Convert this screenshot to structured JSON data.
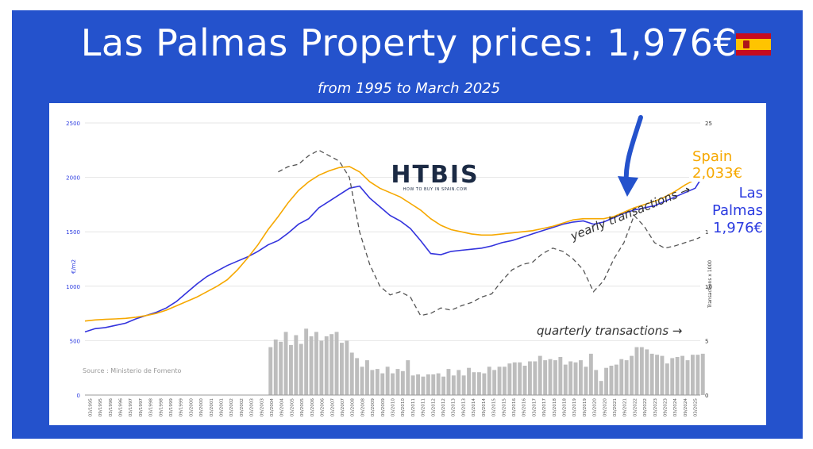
{
  "header": {
    "title": "Las Palmas Property prices: 1,976€",
    "subtitle": "from 1995 to March 2025",
    "flag_icon": "spain-flag-icon"
  },
  "labels": {
    "spain_price": "Spain 2,033€",
    "lp_name": "Las Palmas",
    "lp_price": "1,976€",
    "yearly": "yearly transactions →",
    "quarterly": "quarterly transactions →",
    "source": "Source : Ministerio de Fomento",
    "logo_main": "HTBIS",
    "logo_sub": "HOW TO BUY IN SPAIN.COM"
  },
  "colors": {
    "background": "#2452cc",
    "las_palmas": "#3333dd",
    "spain": "#f6a800",
    "bars": "#bdbdbd",
    "yearly": "#555555",
    "arrow": "#2452cc"
  },
  "chart_data": {
    "type": "line",
    "title": "",
    "xlabel": "",
    "ylabel": "€/m2",
    "y2label": "Transactions x 1000",
    "ylim": [
      0,
      2500
    ],
    "y2lim": [
      0,
      25
    ],
    "yticks": [
      0,
      500,
      1000,
      1500,
      2000,
      2500
    ],
    "y2ticks": [
      0,
      5,
      10,
      15,
      20,
      25
    ],
    "grid": true,
    "x_start": 1995.0,
    "x_end": 2025.25,
    "xticks": [
      "03/1995",
      "09/1995",
      "03/1996",
      "09/1996",
      "03/1997",
      "09/1997",
      "03/1998",
      "09/1998",
      "03/1999",
      "09/1999",
      "03/2000",
      "09/2000",
      "03/2001",
      "09/2001",
      "03/2002",
      "09/2002",
      "03/2003",
      "09/2003",
      "03/2004",
      "09/2004",
      "03/2005",
      "09/2005",
      "03/2006",
      "09/2006",
      "03/2007",
      "09/2007",
      "03/2008",
      "09/2008",
      "03/2009",
      "09/2009",
      "03/2010",
      "09/2010",
      "03/2011",
      "09/2011",
      "03/2012",
      "09/2012",
      "03/2013",
      "09/2013",
      "03/2014",
      "09/2014",
      "03/2015",
      "09/2015",
      "03/2016",
      "09/2016",
      "03/2017",
      "09/2017",
      "03/2018",
      "09/2018",
      "03/2019",
      "09/2019",
      "03/2020",
      "09/2020",
      "03/2021",
      "09/2021",
      "03/2022",
      "09/2022",
      "03/2023",
      "09/2023",
      "03/2024",
      "09/2024",
      "03/2025"
    ],
    "series": [
      {
        "name": "Las Palmas",
        "axis": "left",
        "color": "#3333dd",
        "x": [
          1995.0,
          1995.5,
          1996.0,
          1996.5,
          1997.0,
          1997.5,
          1998.0,
          1998.5,
          1999.0,
          1999.5,
          2000.0,
          2000.5,
          2001.0,
          2001.5,
          2002.0,
          2002.5,
          2003.0,
          2003.5,
          2004.0,
          2004.5,
          2005.0,
          2005.5,
          2006.0,
          2006.5,
          2007.0,
          2007.5,
          2008.0,
          2008.5,
          2009.0,
          2009.5,
          2010.0,
          2010.5,
          2011.0,
          2011.5,
          2012.0,
          2012.5,
          2013.0,
          2013.5,
          2014.0,
          2014.5,
          2015.0,
          2015.5,
          2016.0,
          2016.5,
          2017.0,
          2017.5,
          2018.0,
          2018.5,
          2019.0,
          2019.5,
          2020.0,
          2020.5,
          2021.0,
          2021.5,
          2022.0,
          2022.5,
          2023.0,
          2023.5,
          2024.0,
          2024.5,
          2025.0,
          2025.25
        ],
        "y": [
          580,
          610,
          620,
          640,
          660,
          700,
          730,
          760,
          800,
          860,
          940,
          1020,
          1090,
          1140,
          1190,
          1230,
          1270,
          1320,
          1380,
          1420,
          1490,
          1570,
          1620,
          1720,
          1780,
          1840,
          1900,
          1920,
          1810,
          1730,
          1650,
          1600,
          1530,
          1420,
          1300,
          1290,
          1320,
          1330,
          1340,
          1350,
          1370,
          1400,
          1420,
          1450,
          1480,
          1510,
          1540,
          1570,
          1590,
          1600,
          1570,
          1590,
          1630,
          1670,
          1700,
          1720,
          1740,
          1780,
          1820,
          1860,
          1900,
          1976
        ]
      },
      {
        "name": "Spain",
        "axis": "left",
        "color": "#f6a800",
        "x": [
          1995.0,
          1995.5,
          1996.0,
          1996.5,
          1997.0,
          1997.5,
          1998.0,
          1998.5,
          1999.0,
          1999.5,
          2000.0,
          2000.5,
          2001.0,
          2001.5,
          2002.0,
          2002.5,
          2003.0,
          2003.5,
          2004.0,
          2004.5,
          2005.0,
          2005.5,
          2006.0,
          2006.5,
          2007.0,
          2007.5,
          2008.0,
          2008.5,
          2009.0,
          2009.5,
          2010.0,
          2010.5,
          2011.0,
          2011.5,
          2012.0,
          2012.5,
          2013.0,
          2013.5,
          2014.0,
          2014.5,
          2015.0,
          2015.5,
          2016.0,
          2016.5,
          2017.0,
          2017.5,
          2018.0,
          2018.5,
          2019.0,
          2019.5,
          2020.0,
          2020.5,
          2021.0,
          2021.5,
          2022.0,
          2022.5,
          2023.0,
          2023.5,
          2024.0,
          2024.5,
          2025.0,
          2025.25
        ],
        "y": [
          680,
          690,
          695,
          700,
          705,
          715,
          730,
          750,
          780,
          820,
          860,
          900,
          950,
          1000,
          1060,
          1150,
          1260,
          1380,
          1520,
          1640,
          1770,
          1880,
          1960,
          2020,
          2060,
          2090,
          2100,
          2050,
          1960,
          1900,
          1860,
          1820,
          1760,
          1700,
          1620,
          1560,
          1520,
          1500,
          1480,
          1470,
          1470,
          1480,
          1490,
          1500,
          1510,
          1530,
          1550,
          1580,
          1610,
          1620,
          1620,
          1620,
          1640,
          1680,
          1720,
          1750,
          1780,
          1820,
          1870,
          1930,
          1980,
          2033
        ]
      },
      {
        "name": "yearly transactions",
        "axis": "right",
        "color": "#555555",
        "dashed": true,
        "x": [
          2004.5,
          2005.0,
          2005.5,
          2006.0,
          2006.5,
          2007.0,
          2007.5,
          2008.0,
          2008.5,
          2009.0,
          2009.5,
          2010.0,
          2010.5,
          2011.0,
          2011.5,
          2012.0,
          2012.5,
          2013.0,
          2013.5,
          2014.0,
          2014.5,
          2015.0,
          2015.5,
          2016.0,
          2016.5,
          2017.0,
          2017.5,
          2018.0,
          2018.5,
          2019.0,
          2019.5,
          2020.0,
          2020.5,
          2021.0,
          2021.5,
          2022.0,
          2022.5,
          2023.0,
          2023.5,
          2024.0,
          2024.5,
          2025.0,
          2025.25
        ],
        "y": [
          20.5,
          21.0,
          21.2,
          22.0,
          22.5,
          22.0,
          21.5,
          20.0,
          15.0,
          12.0,
          10.0,
          9.2,
          9.5,
          9.0,
          7.3,
          7.5,
          8.0,
          7.8,
          8.2,
          8.5,
          9.0,
          9.3,
          10.5,
          11.5,
          12.0,
          12.2,
          13.0,
          13.5,
          13.2,
          12.5,
          11.5,
          9.5,
          10.5,
          12.5,
          14.0,
          16.5,
          15.5,
          14.0,
          13.5,
          13.7,
          14.0,
          14.3,
          14.5
        ]
      }
    ],
    "bars": {
      "name": "quarterly transactions",
      "axis": "right",
      "color": "#bdbdbd",
      "x_start": 2004.0,
      "step": 0.25,
      "values": [
        4.4,
        5.1,
        4.9,
        5.8,
        4.6,
        5.5,
        4.7,
        6.1,
        5.4,
        5.8,
        5.0,
        5.4,
        5.6,
        5.8,
        4.8,
        5.0,
        3.9,
        3.4,
        2.6,
        3.2,
        2.3,
        2.4,
        2.0,
        2.6,
        2.0,
        2.4,
        2.2,
        3.2,
        1.8,
        1.9,
        1.7,
        1.9,
        1.9,
        2.0,
        1.7,
        2.4,
        1.8,
        2.3,
        1.8,
        2.5,
        2.1,
        2.1,
        2.0,
        2.6,
        2.3,
        2.6,
        2.6,
        2.9,
        3.0,
        3.0,
        2.7,
        3.1,
        3.1,
        3.6,
        3.2,
        3.3,
        3.2,
        3.5,
        2.8,
        3.1,
        3.0,
        3.2,
        2.6,
        3.8,
        2.3,
        1.3,
        2.5,
        2.7,
        2.8,
        3.3,
        3.2,
        3.6,
        4.4,
        4.4,
        4.2,
        3.8,
        3.7,
        3.6,
        2.9,
        3.4,
        3.5,
        3.6,
        3.2,
        3.7,
        3.7,
        3.8
      ]
    }
  }
}
